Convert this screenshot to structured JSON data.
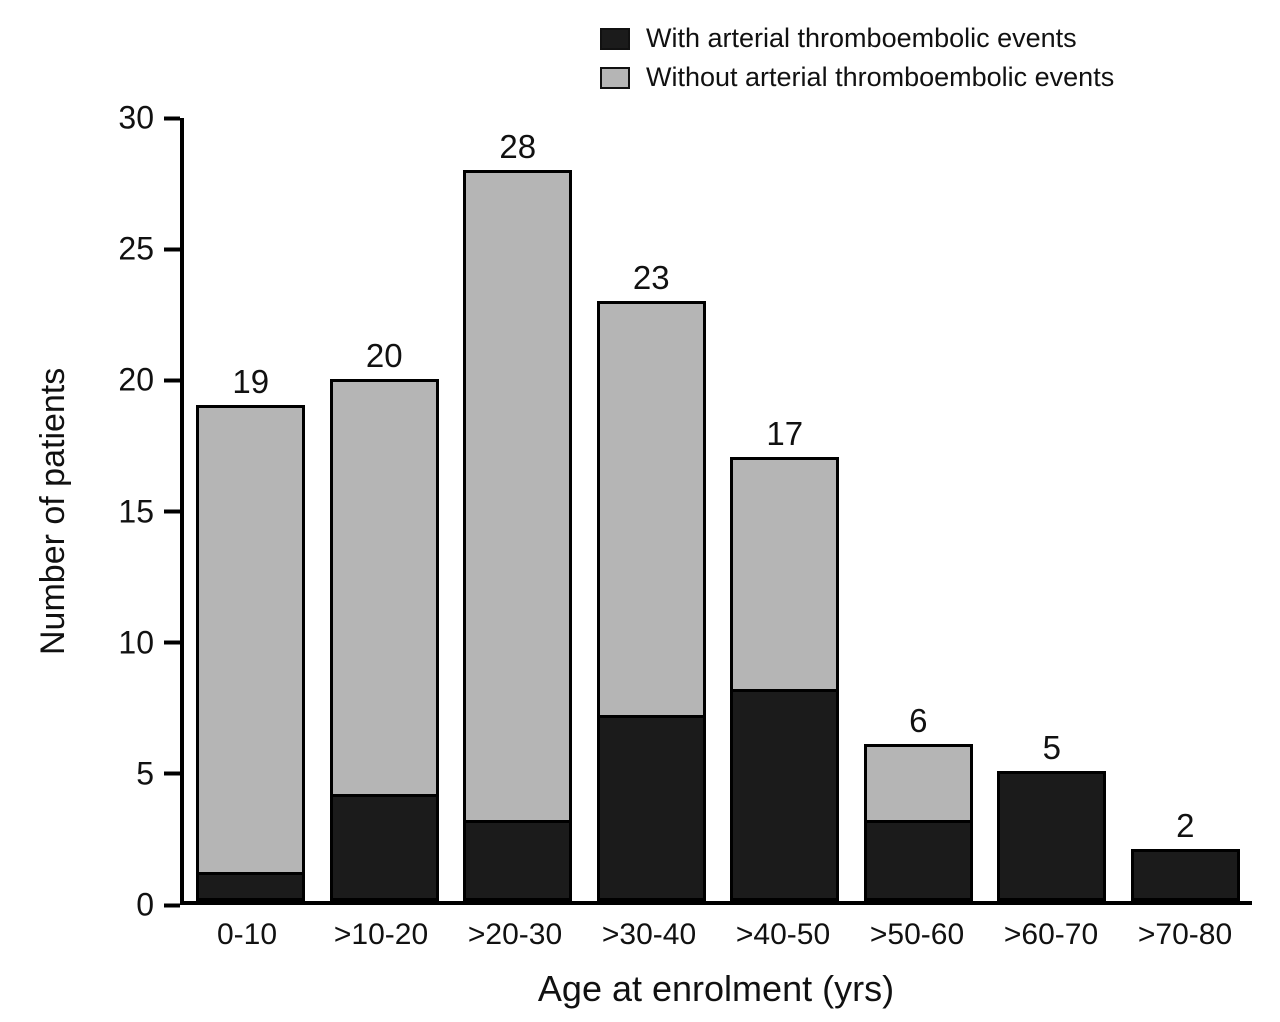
{
  "chart_data": {
    "type": "bar",
    "stacked": true,
    "categories": [
      "0-10",
      ">10-20",
      ">20-30",
      ">30-40",
      ">40-50",
      ">50-60",
      ">60-70",
      ">70-80"
    ],
    "series": [
      {
        "name": "With arterial thromboembolic events",
        "color": "#1b1b1b",
        "values": [
          1,
          4,
          3,
          7,
          8,
          3,
          5,
          2
        ]
      },
      {
        "name": "Without arterial thromboembolic events",
        "color": "#b5b5b5",
        "values": [
          18,
          16,
          25,
          16,
          9,
          3,
          0,
          0
        ]
      }
    ],
    "totals": [
      19,
      20,
      28,
      23,
      17,
      6,
      5,
      2
    ],
    "title": "",
    "xlabel": "Age at enrolment (yrs)",
    "ylabel": "Number of patients",
    "ylim": [
      0,
      30
    ],
    "yticks": [
      0,
      5,
      10,
      15,
      20,
      25,
      30
    ],
    "legend_position": "top-right",
    "grid": false,
    "bar_outline_color": "#000000",
    "axis_color": "#000000"
  }
}
